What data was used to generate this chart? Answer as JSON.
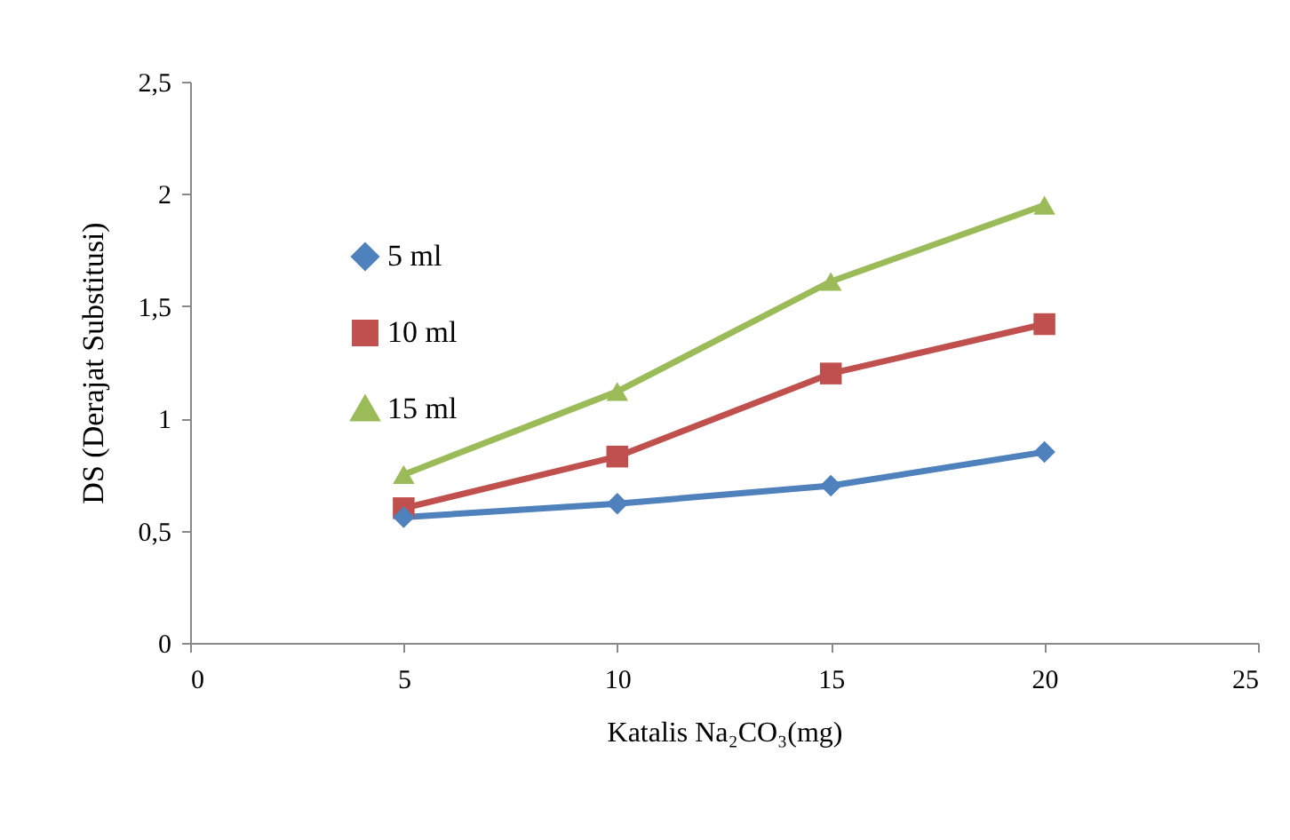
{
  "chart_data": {
    "type": "line",
    "xlabel": "Katalis Na₂CO₃(mg)",
    "ylabel": "DS (Derajat Substitusi)",
    "x": [
      5,
      10,
      15,
      20
    ],
    "series": [
      {
        "name": "5 ml",
        "color": "#4f81bd",
        "marker": "diamond",
        "values": [
          0.56,
          0.62,
          0.7,
          0.85
        ]
      },
      {
        "name": "10 ml",
        "color": "#c0504d",
        "marker": "square",
        "values": [
          0.6,
          0.83,
          1.2,
          1.42
        ]
      },
      {
        "name": "15 ml",
        "color": "#9bbb59",
        "marker": "triangle",
        "values": [
          0.75,
          1.12,
          1.61,
          1.95
        ]
      }
    ],
    "xlim": [
      0,
      25
    ],
    "xticks": [
      0,
      5,
      10,
      15,
      20,
      25
    ],
    "ylim": [
      0,
      2.5
    ],
    "yticks": [
      0,
      {
        "value": 0.5,
        "label": "0,5"
      },
      1,
      {
        "value": 1.5,
        "label": "1,5"
      },
      2,
      {
        "value": 2.5,
        "label": "2,5"
      }
    ],
    "grid": false,
    "legend": "top left"
  }
}
